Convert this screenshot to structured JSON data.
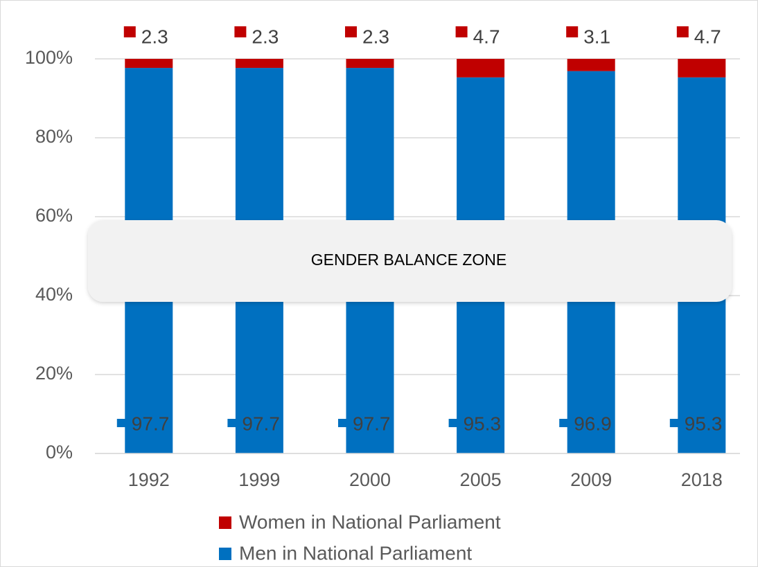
{
  "chart_data": {
    "type": "stacked_bar",
    "categories": [
      "1992",
      "1999",
      "2000",
      "2005",
      "2009",
      "2018"
    ],
    "series": [
      {
        "name": "Men in National Parliament",
        "color": "#0070c0",
        "values": [
          97.7,
          97.7,
          97.7,
          95.3,
          96.9,
          95.3
        ]
      },
      {
        "name": "Women in National Parliament",
        "color": "#c00000",
        "values": [
          2.3,
          2.3,
          2.3,
          4.7,
          3.1,
          4.7
        ]
      }
    ],
    "ylim": [
      0,
      100
    ],
    "yticks": [
      {
        "value": 0,
        "label": "0%"
      },
      {
        "value": 20,
        "label": "20%"
      },
      {
        "value": 40,
        "label": "40%"
      },
      {
        "value": 60,
        "label": "60%"
      },
      {
        "value": 80,
        "label": "80%"
      },
      {
        "value": 100,
        "label": "100%"
      }
    ],
    "grid": true,
    "legend": "bottom",
    "annotation": {
      "text": "GENDER BALANCE ZONE",
      "range": [
        40,
        60
      ]
    }
  }
}
